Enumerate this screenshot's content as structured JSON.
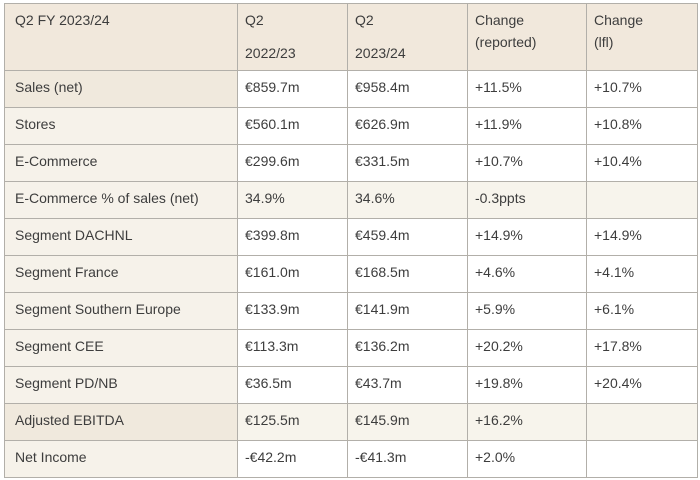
{
  "page_title": "Q2 FY 2023/24 results table",
  "colors": {
    "header_bg": "#f1e8dc",
    "label_bg": "#f6f2ea",
    "label_dark_bg": "#f0e9dd",
    "row_highlight_bg": "#f7f4ec",
    "border": "#b2afa9",
    "text": "#3d3d3d"
  },
  "chart_data": {
    "type": "table",
    "title": "Q2 FY 2023/24",
    "columns": [
      {
        "id": "metric",
        "lines": [
          "Q2 FY 2023/24"
        ],
        "spaced": false
      },
      {
        "id": "q2-2022-23",
        "lines": [
          "Q2",
          "2022/23"
        ],
        "spaced": true
      },
      {
        "id": "q2-2023-24",
        "lines": [
          "Q2",
          "2023/24"
        ],
        "spaced": true
      },
      {
        "id": "change-reported",
        "lines": [
          "Change",
          "(reported)"
        ],
        "spaced": false
      },
      {
        "id": "change-lfl",
        "lines": [
          "Change",
          "(lfl)"
        ],
        "spaced": false
      }
    ],
    "rows": [
      {
        "label": "Sales (net)",
        "values": [
          "€859.7m",
          "€958.4m",
          "+11.5%",
          "+10.7%"
        ],
        "label_emphasis": true,
        "row_highlight": false
      },
      {
        "label": "Stores",
        "values": [
          "€560.1m",
          "€626.9m",
          "+11.9%",
          "+10.8%"
        ],
        "label_emphasis": false,
        "row_highlight": false
      },
      {
        "label": "E-Commerce",
        "values": [
          "€299.6m",
          "€331.5m",
          "+10.7%",
          "+10.4%"
        ],
        "label_emphasis": false,
        "row_highlight": false
      },
      {
        "label": "E-Commerce % of sales (net)",
        "values": [
          "34.9%",
          "34.6%",
          "-0.3ppts",
          ""
        ],
        "label_emphasis": false,
        "row_highlight": true
      },
      {
        "label": "Segment DACHNL",
        "values": [
          "€399.8m",
          "€459.4m",
          "+14.9%",
          "+14.9%"
        ],
        "label_emphasis": false,
        "row_highlight": false
      },
      {
        "label": "Segment France",
        "values": [
          "€161.0m",
          "€168.5m",
          "+4.6%",
          "+4.1%"
        ],
        "label_emphasis": false,
        "row_highlight": false
      },
      {
        "label": "Segment Southern Europe",
        "values": [
          "€133.9m",
          "€141.9m",
          "+5.9%",
          "+6.1%"
        ],
        "label_emphasis": false,
        "row_highlight": false
      },
      {
        "label": "Segment CEE",
        "values": [
          "€113.3m",
          "€136.2m",
          "+20.2%",
          "+17.8%"
        ],
        "label_emphasis": false,
        "row_highlight": false
      },
      {
        "label": "Segment PD/NB",
        "values": [
          "€36.5m",
          "€43.7m",
          "+19.8%",
          "+20.4%"
        ],
        "label_emphasis": false,
        "row_highlight": false
      },
      {
        "label": "Adjusted EBITDA",
        "values": [
          "€125.5m",
          "€145.9m",
          "+16.2%",
          ""
        ],
        "label_emphasis": true,
        "row_highlight": true
      },
      {
        "label": "Net Income",
        "values": [
          "-€42.2m",
          "-€41.3m",
          "+2.0%",
          ""
        ],
        "label_emphasis": false,
        "row_highlight": false
      }
    ]
  }
}
